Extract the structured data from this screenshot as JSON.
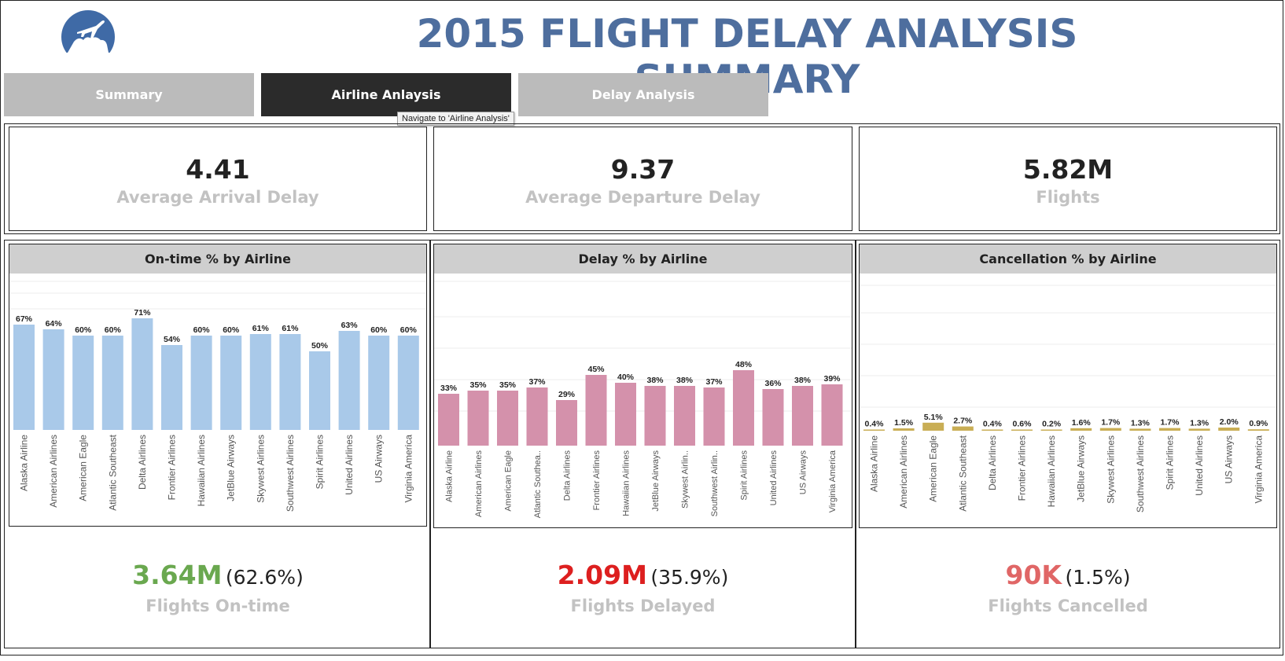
{
  "header": {
    "title": "2015 FLIGHT DELAY ANALYSIS SUMMARY"
  },
  "tabs": [
    {
      "label": "Summary",
      "active": false
    },
    {
      "label": "Airline Anlaysis",
      "active": true
    },
    {
      "label": "Delay Analysis",
      "active": false
    }
  ],
  "tooltip": "Navigate to 'Airline Analysis'",
  "kpis": [
    {
      "value": "4.41",
      "label": "Average Arrival Delay"
    },
    {
      "value": "9.37",
      "label": "Average Departure Delay"
    },
    {
      "value": "5.82M",
      "label": "Flights"
    }
  ],
  "colors": {
    "title": "#4e6e9e",
    "ontime": "#a9c9e9",
    "delay": "#d491ab",
    "cancel": "#c9ae55",
    "ontime_total": "#6aa84f",
    "delay_total": "#dd1f1f",
    "cancel_total": "#e06666"
  },
  "chart_data": [
    {
      "type": "bar",
      "title": "On-time % by Airline",
      "categories": [
        "Alaska Airline",
        "American Airlines",
        "American Eagle",
        "Atlantic Southeast",
        "Delta Airlines",
        "Frontier Airlines",
        "Hawaiian Airlines",
        "JetBlue Airways",
        "Skywest Airlines",
        "Southwest Airlines",
        "Spirit Airlines",
        "United Airlines",
        "US Airways",
        "Virginia America"
      ],
      "values": [
        67,
        64,
        60,
        60,
        71,
        54,
        60,
        60,
        61,
        61,
        50,
        63,
        60,
        60
      ],
      "labels": [
        "67%",
        "64%",
        "60%",
        "60%",
        "71%",
        "54%",
        "60%",
        "60%",
        "61%",
        "61%",
        "50%",
        "63%",
        "60%",
        "60%"
      ],
      "ylim": [
        0,
        100
      ],
      "color": "#a9c9e9"
    },
    {
      "type": "bar",
      "title": "Delay % by Airline",
      "categories": [
        "Alaska Airline",
        "American Airlines",
        "American Eagle",
        "Atlantic Southea..",
        "Delta Airlines",
        "Frontier Airlines",
        "Hawaiian Airlines",
        "JetBlue Airways",
        "Skywest Airlin..",
        "Southwest Airlin..",
        "Spirit Airlines",
        "United Airlines",
        "US Airways",
        "Virginia America"
      ],
      "values": [
        33,
        35,
        35,
        37,
        29,
        45,
        40,
        38,
        38,
        37,
        48,
        36,
        38,
        39
      ],
      "labels": [
        "33%",
        "35%",
        "35%",
        "37%",
        "29%",
        "45%",
        "40%",
        "38%",
        "38%",
        "37%",
        "48%",
        "36%",
        "38%",
        "39%"
      ],
      "ylim": [
        0,
        100
      ],
      "color": "#d491ab"
    },
    {
      "type": "bar",
      "title": "Cancellation % by Airline",
      "categories": [
        "Alaska Airline",
        "American Airlines",
        "American Eagle",
        "Atlantic Southeast",
        "Delta Airlines",
        "Frontier Airlines",
        "Hawaiian Airlines",
        "JetBlue Airways",
        "Skywest Airlines",
        "Southwest Airlines",
        "Spirit Airlines",
        "United Airlines",
        "US Airways",
        "Virginia America"
      ],
      "values": [
        0.4,
        1.5,
        5.1,
        2.7,
        0.4,
        0.6,
        0.2,
        1.6,
        1.7,
        1.3,
        1.7,
        1.3,
        2.0,
        0.9
      ],
      "labels": [
        "0.4%",
        "1.5%",
        "5.1%",
        "2.7%",
        "0.4%",
        "0.6%",
        "0.2%",
        "1.6%",
        "1.7%",
        "1.3%",
        "1.7%",
        "1.3%",
        "2.0%",
        "0.9%"
      ],
      "ylim": [
        0,
        100
      ],
      "color": "#c9ae55"
    }
  ],
  "summaries": [
    {
      "value": "3.64M",
      "pct": "(62.6%)",
      "label": "Flights On-time"
    },
    {
      "value": "2.09M",
      "pct": "(35.9%)",
      "label": "Flights Delayed"
    },
    {
      "value": "90K",
      "pct": "(1.5%)",
      "label": "Flights Cancelled"
    }
  ]
}
